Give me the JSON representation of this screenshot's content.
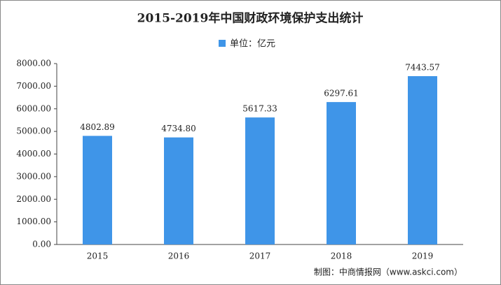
{
  "chart_data": {
    "type": "bar",
    "title": "2015-2019年中国财政环境保护支出统计",
    "categories": [
      "2015",
      "2016",
      "2017",
      "2018",
      "2019"
    ],
    "series": [
      {
        "name": "单位：亿元",
        "color": "#3f95e8",
        "values": [
          4802.89,
          4734.8,
          5617.33,
          6297.61,
          7443.57
        ],
        "value_labels": [
          "4802.89",
          "4734.80",
          "5617.33",
          "6297.61",
          "7443.57"
        ]
      }
    ],
    "ylim": [
      0,
      8000
    ],
    "yticks": [
      {
        "value": 0,
        "label": "0.00"
      },
      {
        "value": 1000,
        "label": "1000.00"
      },
      {
        "value": 2000,
        "label": "2000.00"
      },
      {
        "value": 3000,
        "label": "3000.00"
      },
      {
        "value": 4000,
        "label": "4000.00"
      },
      {
        "value": 5000,
        "label": "5000.00"
      },
      {
        "value": 6000,
        "label": "6000.00"
      },
      {
        "value": 7000,
        "label": "7000.00"
      },
      {
        "value": 8000,
        "label": "8000.00"
      }
    ],
    "source": "制图：中商情报网（www.askci.com）"
  }
}
